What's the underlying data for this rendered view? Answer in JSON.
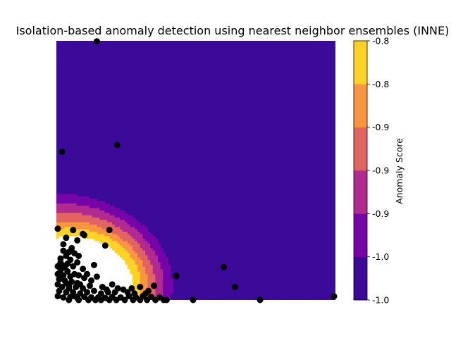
{
  "chart_data": {
    "type": "heatmap",
    "title": "Isolation-based anomaly detection using nearest neighbor ensembles (INNE)",
    "xlabel": "",
    "ylabel": "",
    "xlim": [
      0,
      1
    ],
    "ylim": [
      0,
      1
    ],
    "axes_visible": false,
    "colorbar": {
      "label": "Anomaly Score",
      "tick_labels": [
        "-1.0",
        "-1.0",
        "-0.9",
        "-0.9",
        "-0.9",
        "-0.8",
        "-0.8"
      ],
      "bands": [
        "#3b0a99",
        "#7505a8",
        "#b12a90",
        "#e16462",
        "#f89540",
        "#fcd325"
      ],
      "placement": "right"
    },
    "contour_centers": [
      {
        "x": 0.0,
        "y": 0.0,
        "weight": 1.0,
        "scale": 0.16
      },
      {
        "x": 0.0,
        "y": 0.12,
        "weight": 0.8,
        "scale": 0.17
      },
      {
        "x": 0.17,
        "y": 0.06,
        "weight": 0.7,
        "scale": 0.14
      },
      {
        "x": 0.1,
        "y": 0.03,
        "weight": 0.9,
        "scale": 0.12
      }
    ],
    "points": [
      [
        0.145,
        0.998
      ],
      [
        0.02,
        0.572
      ],
      [
        0.218,
        0.598
      ],
      [
        0.6,
        0.127
      ],
      [
        0.64,
        0.05
      ],
      [
        0.43,
        0.093
      ],
      [
        0.995,
        0.014
      ],
      [
        0.49,
        0.0
      ],
      [
        0.73,
        0.0
      ],
      [
        0.005,
        0.275
      ],
      [
        0.06,
        0.27
      ],
      [
        0.095,
        0.255
      ],
      [
        0.1,
        0.25
      ],
      [
        0.19,
        0.27
      ],
      [
        0.035,
        0.24
      ],
      [
        0.075,
        0.23
      ],
      [
        0.025,
        0.215
      ],
      [
        0.175,
        0.21
      ],
      [
        0.055,
        0.2
      ],
      [
        0.025,
        0.19
      ],
      [
        0.065,
        0.18
      ],
      [
        0.035,
        0.17
      ],
      [
        0.015,
        0.16
      ],
      [
        0.05,
        0.155
      ],
      [
        0.075,
        0.145
      ],
      [
        0.015,
        0.145
      ],
      [
        0.04,
        0.14
      ],
      [
        0.005,
        0.13
      ],
      [
        0.03,
        0.125
      ],
      [
        0.06,
        0.13
      ],
      [
        0.135,
        0.135
      ],
      [
        0.015,
        0.115
      ],
      [
        0.04,
        0.11
      ],
      [
        0.065,
        0.1
      ],
      [
        0.095,
        0.12
      ],
      [
        0.005,
        0.1
      ],
      [
        0.025,
        0.095
      ],
      [
        0.05,
        0.09
      ],
      [
        0.08,
        0.095
      ],
      [
        0.11,
        0.1
      ],
      [
        0.01,
        0.08
      ],
      [
        0.03,
        0.075
      ],
      [
        0.055,
        0.07
      ],
      [
        0.075,
        0.065
      ],
      [
        0.1,
        0.085
      ],
      [
        0.145,
        0.09
      ],
      [
        0.005,
        0.06
      ],
      [
        0.02,
        0.05
      ],
      [
        0.045,
        0.055
      ],
      [
        0.07,
        0.05
      ],
      [
        0.095,
        0.045
      ],
      [
        0.12,
        0.055
      ],
      [
        0.165,
        0.05
      ],
      [
        0.2,
        0.06
      ],
      [
        0.22,
        0.045
      ],
      [
        0.01,
        0.035
      ],
      [
        0.035,
        0.03
      ],
      [
        0.06,
        0.03
      ],
      [
        0.085,
        0.025
      ],
      [
        0.11,
        0.03
      ],
      [
        0.135,
        0.035
      ],
      [
        0.16,
        0.025
      ],
      [
        0.185,
        0.03
      ],
      [
        0.21,
        0.03
      ],
      [
        0.24,
        0.04
      ],
      [
        0.27,
        0.045
      ],
      [
        0.3,
        0.05
      ],
      [
        0.33,
        0.035
      ],
      [
        0.35,
        0.055
      ],
      [
        0.005,
        0.015
      ],
      [
        0.025,
        0.01
      ],
      [
        0.05,
        0.012
      ],
      [
        0.075,
        0.008
      ],
      [
        0.1,
        0.012
      ],
      [
        0.125,
        0.01
      ],
      [
        0.15,
        0.01
      ],
      [
        0.175,
        0.008
      ],
      [
        0.2,
        0.012
      ],
      [
        0.23,
        0.01
      ],
      [
        0.26,
        0.015
      ],
      [
        0.285,
        0.01
      ],
      [
        0.31,
        0.015
      ],
      [
        0.34,
        0.012
      ],
      [
        0.37,
        0.01
      ],
      [
        0.385,
        0.0
      ],
      [
        0.395,
        0.0
      ],
      [
        0.045,
        0.0
      ],
      [
        0.08,
        0.0
      ],
      [
        0.115,
        0.0
      ],
      [
        0.14,
        0.0
      ],
      [
        0.16,
        0.0
      ],
      [
        0.19,
        0.0
      ],
      [
        0.215,
        0.0
      ],
      [
        0.245,
        0.0
      ],
      [
        0.275,
        0.0
      ],
      [
        0.3,
        0.0
      ],
      [
        0.325,
        0.0
      ],
      [
        0.355,
        0.0
      ],
      [
        0.035,
        0.065
      ],
      [
        0.085,
        0.06
      ],
      [
        0.125,
        0.075
      ],
      [
        0.02,
        0.135
      ],
      [
        0.045,
        0.045
      ],
      [
        0.065,
        0.015
      ],
      [
        0.18,
        0.04
      ],
      [
        0.255,
        0.03
      ],
      [
        0.28,
        0.025
      ],
      [
        0.32,
        0.025
      ],
      [
        0.045,
        0.185
      ],
      [
        0.08,
        0.17
      ]
    ]
  }
}
